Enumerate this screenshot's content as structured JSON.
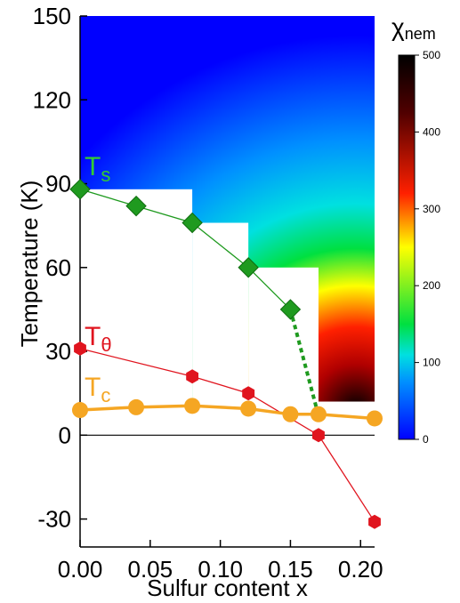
{
  "chart_data": {
    "type": "scatter",
    "xlabel": "Sulfur content x",
    "ylabel": "Temperature (K)",
    "xlim": [
      0,
      0.21
    ],
    "ylim": [
      -40,
      150
    ],
    "x_ticks": [
      "0.00",
      "0.05",
      "0.10",
      "0.15",
      "0.20"
    ],
    "x_tick_values": [
      0,
      0.05,
      0.1,
      0.15,
      0.2
    ],
    "y_ticks": [
      "-30",
      "0",
      "30",
      "60",
      "90",
      "120",
      "150"
    ],
    "y_tick_values": [
      -30,
      0,
      30,
      60,
      90,
      120,
      150
    ],
    "series": [
      {
        "name": "T",
        "sub": "s",
        "color": "#1f9a1f",
        "label_color": "#33cc33",
        "marker": "diamond",
        "x": [
          0,
          0.04,
          0.08,
          0.12,
          0.15
        ],
        "y": [
          88,
          82,
          76,
          60,
          45
        ],
        "dashed_extension": {
          "x": [
            0.15,
            0.17
          ],
          "y": [
            45,
            7
          ]
        }
      },
      {
        "name": "T",
        "sub": "θ",
        "color": "#e0141e",
        "label_color": "#e0141e",
        "marker": "hexagon",
        "x": [
          0,
          0.08,
          0.12,
          0.17,
          0.21
        ],
        "y": [
          31,
          21,
          15,
          0,
          -31
        ]
      },
      {
        "name": "T",
        "sub": "c",
        "color": "#f5a623",
        "label_color": "#f5a623",
        "marker": "circle",
        "x": [
          0,
          0.04,
          0.08,
          0.12,
          0.15,
          0.17,
          0.21
        ],
        "y": [
          9,
          10,
          10.5,
          9.5,
          7.5,
          7.5,
          6
        ]
      }
    ],
    "heatmap": {
      "quantity": "χ",
      "quantity_sub": "nem",
      "colorbar_ticks": [
        "0",
        "100",
        "200",
        "300",
        "400",
        "500"
      ],
      "colorbar_tick_values": [
        0,
        100,
        200,
        300,
        400,
        500
      ],
      "range": [
        0,
        500
      ],
      "mask_steps": [
        {
          "x_from": 0,
          "x_to": 0.08,
          "y_min": 88
        },
        {
          "x_from": 0.08,
          "x_to": 0.12,
          "y_min": 76
        },
        {
          "x_from": 0.12,
          "x_to": 0.17,
          "y_min": 60
        },
        {
          "x_from": 0.17,
          "x_to": 0.21,
          "y_min": 12
        }
      ],
      "colors": [
        "#0000ff",
        "#0090ff",
        "#00e0e0",
        "#00e040",
        "#ffff00",
        "#ff2000",
        "#500000",
        "#000000"
      ]
    }
  }
}
